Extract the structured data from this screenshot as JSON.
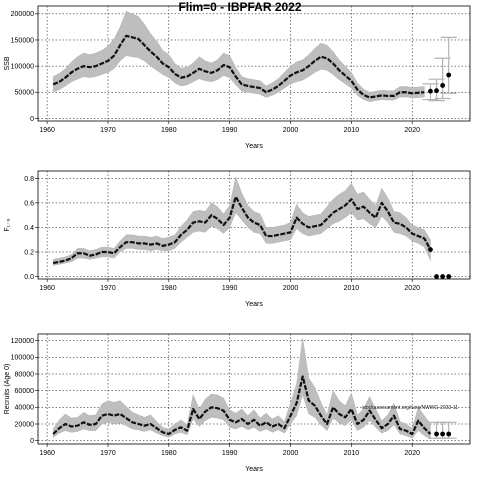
{
  "figure_title": "Flim=0 - IBPFAR 2022",
  "chart_data": [
    {
      "type": "line",
      "xlabel": "Years",
      "ylabel": "SSB",
      "xlim": [
        1958.5,
        2029.5
      ],
      "ylim": [
        -5000,
        215000
      ],
      "xticks": [
        1960,
        1970,
        1980,
        1990,
        2000,
        2010,
        2020
      ],
      "yticks": [
        0,
        50000,
        100000,
        150000,
        200000
      ],
      "grid": true,
      "years": [
        1961,
        1962,
        1963,
        1964,
        1965,
        1966,
        1967,
        1968,
        1969,
        1970,
        1971,
        1972,
        1973,
        1974,
        1975,
        1976,
        1977,
        1978,
        1979,
        1980,
        1981,
        1982,
        1983,
        1984,
        1985,
        1986,
        1987,
        1988,
        1989,
        1990,
        1991,
        1992,
        1993,
        1994,
        1995,
        1996,
        1997,
        1998,
        1999,
        2000,
        2001,
        2002,
        2003,
        2004,
        2005,
        2006,
        2007,
        2008,
        2009,
        2010,
        2011,
        2012,
        2013,
        2014,
        2015,
        2016,
        2017,
        2018,
        2019,
        2020,
        2021,
        2022
      ],
      "estimate": [
        65000,
        70000,
        78000,
        88000,
        95000,
        100000,
        98000,
        100000,
        105000,
        110000,
        120000,
        140000,
        158000,
        155000,
        152000,
        140000,
        128000,
        118000,
        105000,
        98000,
        85000,
        78000,
        80000,
        87000,
        95000,
        90000,
        87000,
        92000,
        102000,
        98000,
        80000,
        65000,
        62000,
        60000,
        58000,
        50000,
        55000,
        62000,
        72000,
        82000,
        88000,
        92000,
        100000,
        110000,
        118000,
        115000,
        105000,
        92000,
        82000,
        72000,
        55000,
        45000,
        40000,
        42000,
        44000,
        43000,
        43000,
        50000,
        50000,
        48000,
        49000,
        50000
      ],
      "lower": [
        50000,
        55000,
        62000,
        70000,
        75000,
        80000,
        78000,
        80000,
        84000,
        88000,
        95000,
        110000,
        120000,
        118000,
        116000,
        110000,
        100000,
        92000,
        84000,
        78000,
        68000,
        62000,
        64000,
        70000,
        76000,
        72000,
        70000,
        74000,
        82000,
        78000,
        64000,
        52000,
        50000,
        48000,
        46000,
        40000,
        44000,
        50000,
        58000,
        66000,
        70000,
        73000,
        80000,
        88000,
        94000,
        92000,
        84000,
        74000,
        66000,
        58000,
        44000,
        36000,
        32000,
        34000,
        36000,
        35000,
        35000,
        41000,
        41000,
        39000,
        40000,
        41000
      ],
      "upper": [
        80000,
        86000,
        95000,
        108000,
        118000,
        125000,
        122000,
        125000,
        130000,
        138000,
        152000,
        175000,
        205000,
        200000,
        195000,
        180000,
        162000,
        148000,
        130000,
        122000,
        105000,
        96000,
        98000,
        106000,
        118000,
        110000,
        106000,
        112000,
        125000,
        120000,
        98000,
        80000,
        76000,
        74000,
        72000,
        62000,
        68000,
        76000,
        88000,
        100000,
        108000,
        112000,
        122000,
        134000,
        144000,
        140000,
        128000,
        112000,
        100000,
        88000,
        68000,
        56000,
        50000,
        52000,
        54000,
        53000,
        53000,
        61000,
        61000,
        59000,
        60000,
        61000
      ],
      "projection": {
        "years": [
          2023,
          2024,
          2025,
          2026
        ],
        "values": [
          52000,
          53000,
          63000,
          83000
        ],
        "lower": [
          36000,
          34000,
          38000,
          48000
        ],
        "upper": [
          66000,
          75000,
          115000,
          155000
        ]
      }
    },
    {
      "type": "line",
      "xlabel": "Years",
      "ylabel": "F₁₋₈",
      "xlim": [
        1958.5,
        2029.5
      ],
      "ylim": [
        -0.02,
        0.86
      ],
      "xticks": [
        1960,
        1970,
        1980,
        1990,
        2000,
        2010,
        2020
      ],
      "yticks": [
        0.0,
        0.2,
        0.4,
        0.6,
        0.8
      ],
      "ytick_labels": [
        "0.0",
        "0.2",
        "0.4",
        "0.6",
        "0.8"
      ],
      "grid": true,
      "years": [
        1961,
        1962,
        1963,
        1964,
        1965,
        1966,
        1967,
        1968,
        1969,
        1970,
        1971,
        1972,
        1973,
        1974,
        1975,
        1976,
        1977,
        1978,
        1979,
        1980,
        1981,
        1982,
        1983,
        1984,
        1985,
        1986,
        1987,
        1988,
        1989,
        1990,
        1991,
        1992,
        1993,
        1994,
        1995,
        1996,
        1997,
        1998,
        1999,
        2000,
        2001,
        2002,
        2003,
        2004,
        2005,
        2006,
        2007,
        2008,
        2009,
        2010,
        2011,
        2012,
        2013,
        2014,
        2015,
        2016,
        2017,
        2018,
        2019,
        2020,
        2021,
        2022,
        2023
      ],
      "estimate": [
        0.11,
        0.12,
        0.13,
        0.15,
        0.19,
        0.19,
        0.17,
        0.18,
        0.2,
        0.2,
        0.19,
        0.24,
        0.28,
        0.28,
        0.27,
        0.27,
        0.26,
        0.27,
        0.25,
        0.26,
        0.28,
        0.34,
        0.38,
        0.44,
        0.45,
        0.44,
        0.5,
        0.47,
        0.42,
        0.48,
        0.65,
        0.56,
        0.48,
        0.44,
        0.42,
        0.33,
        0.33,
        0.34,
        0.35,
        0.36,
        0.48,
        0.43,
        0.4,
        0.41,
        0.42,
        0.47,
        0.52,
        0.55,
        0.58,
        0.63,
        0.55,
        0.57,
        0.52,
        0.48,
        0.6,
        0.53,
        0.44,
        0.43,
        0.4,
        0.35,
        0.33,
        0.31,
        0.22
      ],
      "lower": [
        0.09,
        0.1,
        0.11,
        0.12,
        0.15,
        0.15,
        0.14,
        0.15,
        0.16,
        0.16,
        0.15,
        0.2,
        0.23,
        0.23,
        0.22,
        0.22,
        0.21,
        0.22,
        0.21,
        0.21,
        0.23,
        0.28,
        0.32,
        0.36,
        0.37,
        0.36,
        0.41,
        0.39,
        0.35,
        0.4,
        0.52,
        0.46,
        0.4,
        0.36,
        0.35,
        0.27,
        0.27,
        0.28,
        0.29,
        0.3,
        0.39,
        0.35,
        0.33,
        0.34,
        0.35,
        0.39,
        0.43,
        0.45,
        0.48,
        0.52,
        0.46,
        0.47,
        0.43,
        0.4,
        0.49,
        0.44,
        0.36,
        0.35,
        0.33,
        0.29,
        0.27,
        0.24,
        0.13
      ],
      "upper": [
        0.14,
        0.15,
        0.16,
        0.18,
        0.23,
        0.23,
        0.21,
        0.22,
        0.24,
        0.24,
        0.23,
        0.29,
        0.34,
        0.34,
        0.33,
        0.33,
        0.32,
        0.33,
        0.31,
        0.32,
        0.34,
        0.41,
        0.46,
        0.53,
        0.54,
        0.53,
        0.6,
        0.57,
        0.51,
        0.58,
        0.81,
        0.68,
        0.58,
        0.53,
        0.51,
        0.4,
        0.4,
        0.41,
        0.42,
        0.44,
        0.59,
        0.52,
        0.49,
        0.5,
        0.51,
        0.57,
        0.63,
        0.67,
        0.7,
        0.76,
        0.67,
        0.69,
        0.63,
        0.58,
        0.72,
        0.64,
        0.53,
        0.52,
        0.48,
        0.42,
        0.4,
        0.38,
        0.3
      ],
      "projection": {
        "years": [
          2024,
          2025,
          2026
        ],
        "values": [
          0.0,
          0.0,
          0.0
        ]
      }
    },
    {
      "type": "line",
      "xlabel": "Years",
      "ylabel": "Recruits (Age 0)",
      "xlim": [
        1958.5,
        2029.5
      ],
      "ylim": [
        -4000,
        128000
      ],
      "xticks": [
        1960,
        1970,
        1980,
        1990,
        2000,
        2010,
        2020
      ],
      "yticks": [
        0,
        20000,
        40000,
        60000,
        80000,
        100000,
        120000
      ],
      "grid": true,
      "years": [
        1961,
        1962,
        1963,
        1964,
        1965,
        1966,
        1967,
        1968,
        1969,
        1970,
        1971,
        1972,
        1973,
        1974,
        1975,
        1976,
        1977,
        1978,
        1979,
        1980,
        1981,
        1982,
        1983,
        1984,
        1985,
        1986,
        1987,
        1988,
        1989,
        1990,
        1991,
        1992,
        1993,
        1994,
        1995,
        1996,
        1997,
        1998,
        1999,
        2000,
        2001,
        2002,
        2003,
        2004,
        2005,
        2006,
        2007,
        2008,
        2009,
        2010,
        2011,
        2012,
        2013,
        2014,
        2015,
        2016,
        2017,
        2018,
        2019,
        2020,
        2021,
        2022,
        2023
      ],
      "estimate": [
        8000,
        15000,
        20000,
        17000,
        18000,
        22000,
        19000,
        20000,
        30000,
        32000,
        30000,
        32000,
        27000,
        22000,
        20000,
        18000,
        20000,
        15000,
        10000,
        8000,
        13000,
        16000,
        12000,
        38000,
        26000,
        35000,
        40000,
        39000,
        36000,
        25000,
        22000,
        26000,
        20000,
        25000,
        18000,
        22000,
        17000,
        20000,
        15000,
        30000,
        45000,
        77000,
        48000,
        42000,
        30000,
        20000,
        40000,
        32000,
        28000,
        38000,
        20000,
        25000,
        36000,
        25000,
        15000,
        20000,
        30000,
        14000,
        12000,
        8000,
        24000,
        15000,
        8000
      ],
      "lower": [
        4000,
        9000,
        12000,
        10000,
        11000,
        14000,
        12000,
        12000,
        20000,
        22000,
        20000,
        21000,
        18000,
        14000,
        13000,
        11000,
        13000,
        9000,
        6000,
        4000,
        8000,
        10000,
        7000,
        26000,
        17000,
        24000,
        28000,
        27000,
        25000,
        16000,
        14000,
        17000,
        13000,
        16000,
        11000,
        14000,
        10000,
        13000,
        9000,
        20000,
        30000,
        55000,
        32000,
        28000,
        19000,
        12000,
        27000,
        21000,
        18000,
        25000,
        12000,
        16000,
        24000,
        16000,
        9000,
        12000,
        19000,
        8000,
        6000,
        3000,
        12000,
        6000,
        2000
      ],
      "upper": [
        14000,
        25000,
        32000,
        27000,
        28000,
        34000,
        30000,
        31000,
        44000,
        48000,
        46000,
        48000,
        41000,
        34000,
        31000,
        28000,
        31000,
        23000,
        16000,
        14000,
        20000,
        25000,
        19000,
        55000,
        38000,
        50000,
        56000,
        55000,
        51000,
        37000,
        33000,
        38000,
        30000,
        37000,
        27000,
        33000,
        26000,
        30000,
        23000,
        45000,
        68000,
        123000,
        75000,
        64000,
        46000,
        31000,
        60000,
        48000,
        42000,
        57000,
        31000,
        38000,
        53000,
        38000,
        24000,
        31000,
        45000,
        23000,
        20000,
        15000,
        40000,
        30000,
        20000
      ],
      "projection": {
        "years": [
          2024,
          2025,
          2026
        ],
        "values": [
          8000,
          8000,
          8000
        ],
        "lower": [
          3000,
          3000,
          3000
        ],
        "upper": [
          22000,
          22000,
          22000
        ]
      },
      "annotation": "stockassessment.org/runs/NWWG-2023-11"
    }
  ],
  "colors": {
    "band": "#bebebe",
    "line": "#111111",
    "grid": "#000000",
    "point": "#000000",
    "error_bar": "#b3b3b3",
    "axis": "#000000"
  }
}
